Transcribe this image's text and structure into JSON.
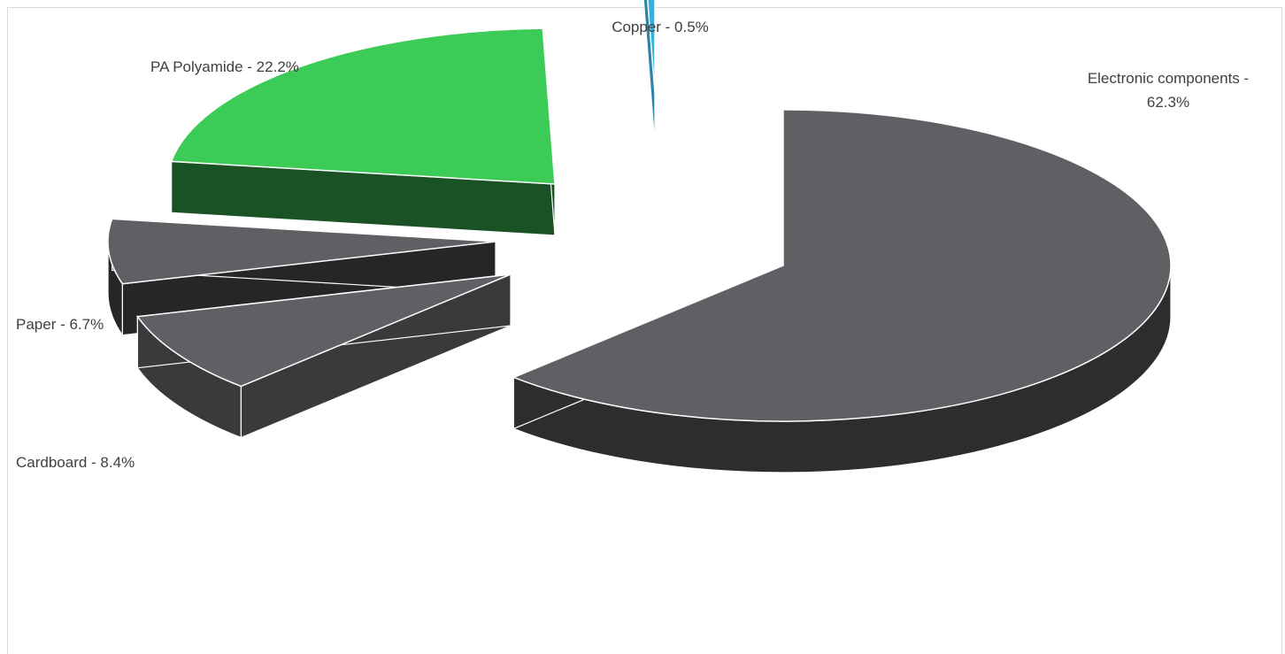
{
  "chart_data": {
    "type": "pie",
    "style": "3d-exploded",
    "slices": [
      {
        "name": "Electronic components",
        "value": 62.3,
        "label_lines": [
          "Electronic components -",
          "62.3%"
        ],
        "color": "#5f5f64",
        "side_color": "#2d2d2f"
      },
      {
        "name": "Cardboard",
        "value": 8.4,
        "label_lines": [
          "Cardboard - 8.4%"
        ],
        "color": "#5f5f64",
        "side_color": "#3a3a3d"
      },
      {
        "name": "Paper",
        "value": 6.7,
        "label_lines": [
          "Paper - 6.7%"
        ],
        "color": "#5f5f64",
        "side_color": "#262628"
      },
      {
        "name": "PA Polyamide",
        "value": 22.2,
        "label_lines": [
          "PA Polyamide - 22.2%"
        ],
        "color": "#3ccb57",
        "side_color": "#1a5226"
      },
      {
        "name": "Copper",
        "value": 0.5,
        "label_lines": [
          "Copper - 0.5%"
        ],
        "color": "#3aaed8",
        "side_color": "#2a84a6"
      }
    ],
    "legend": "none"
  }
}
